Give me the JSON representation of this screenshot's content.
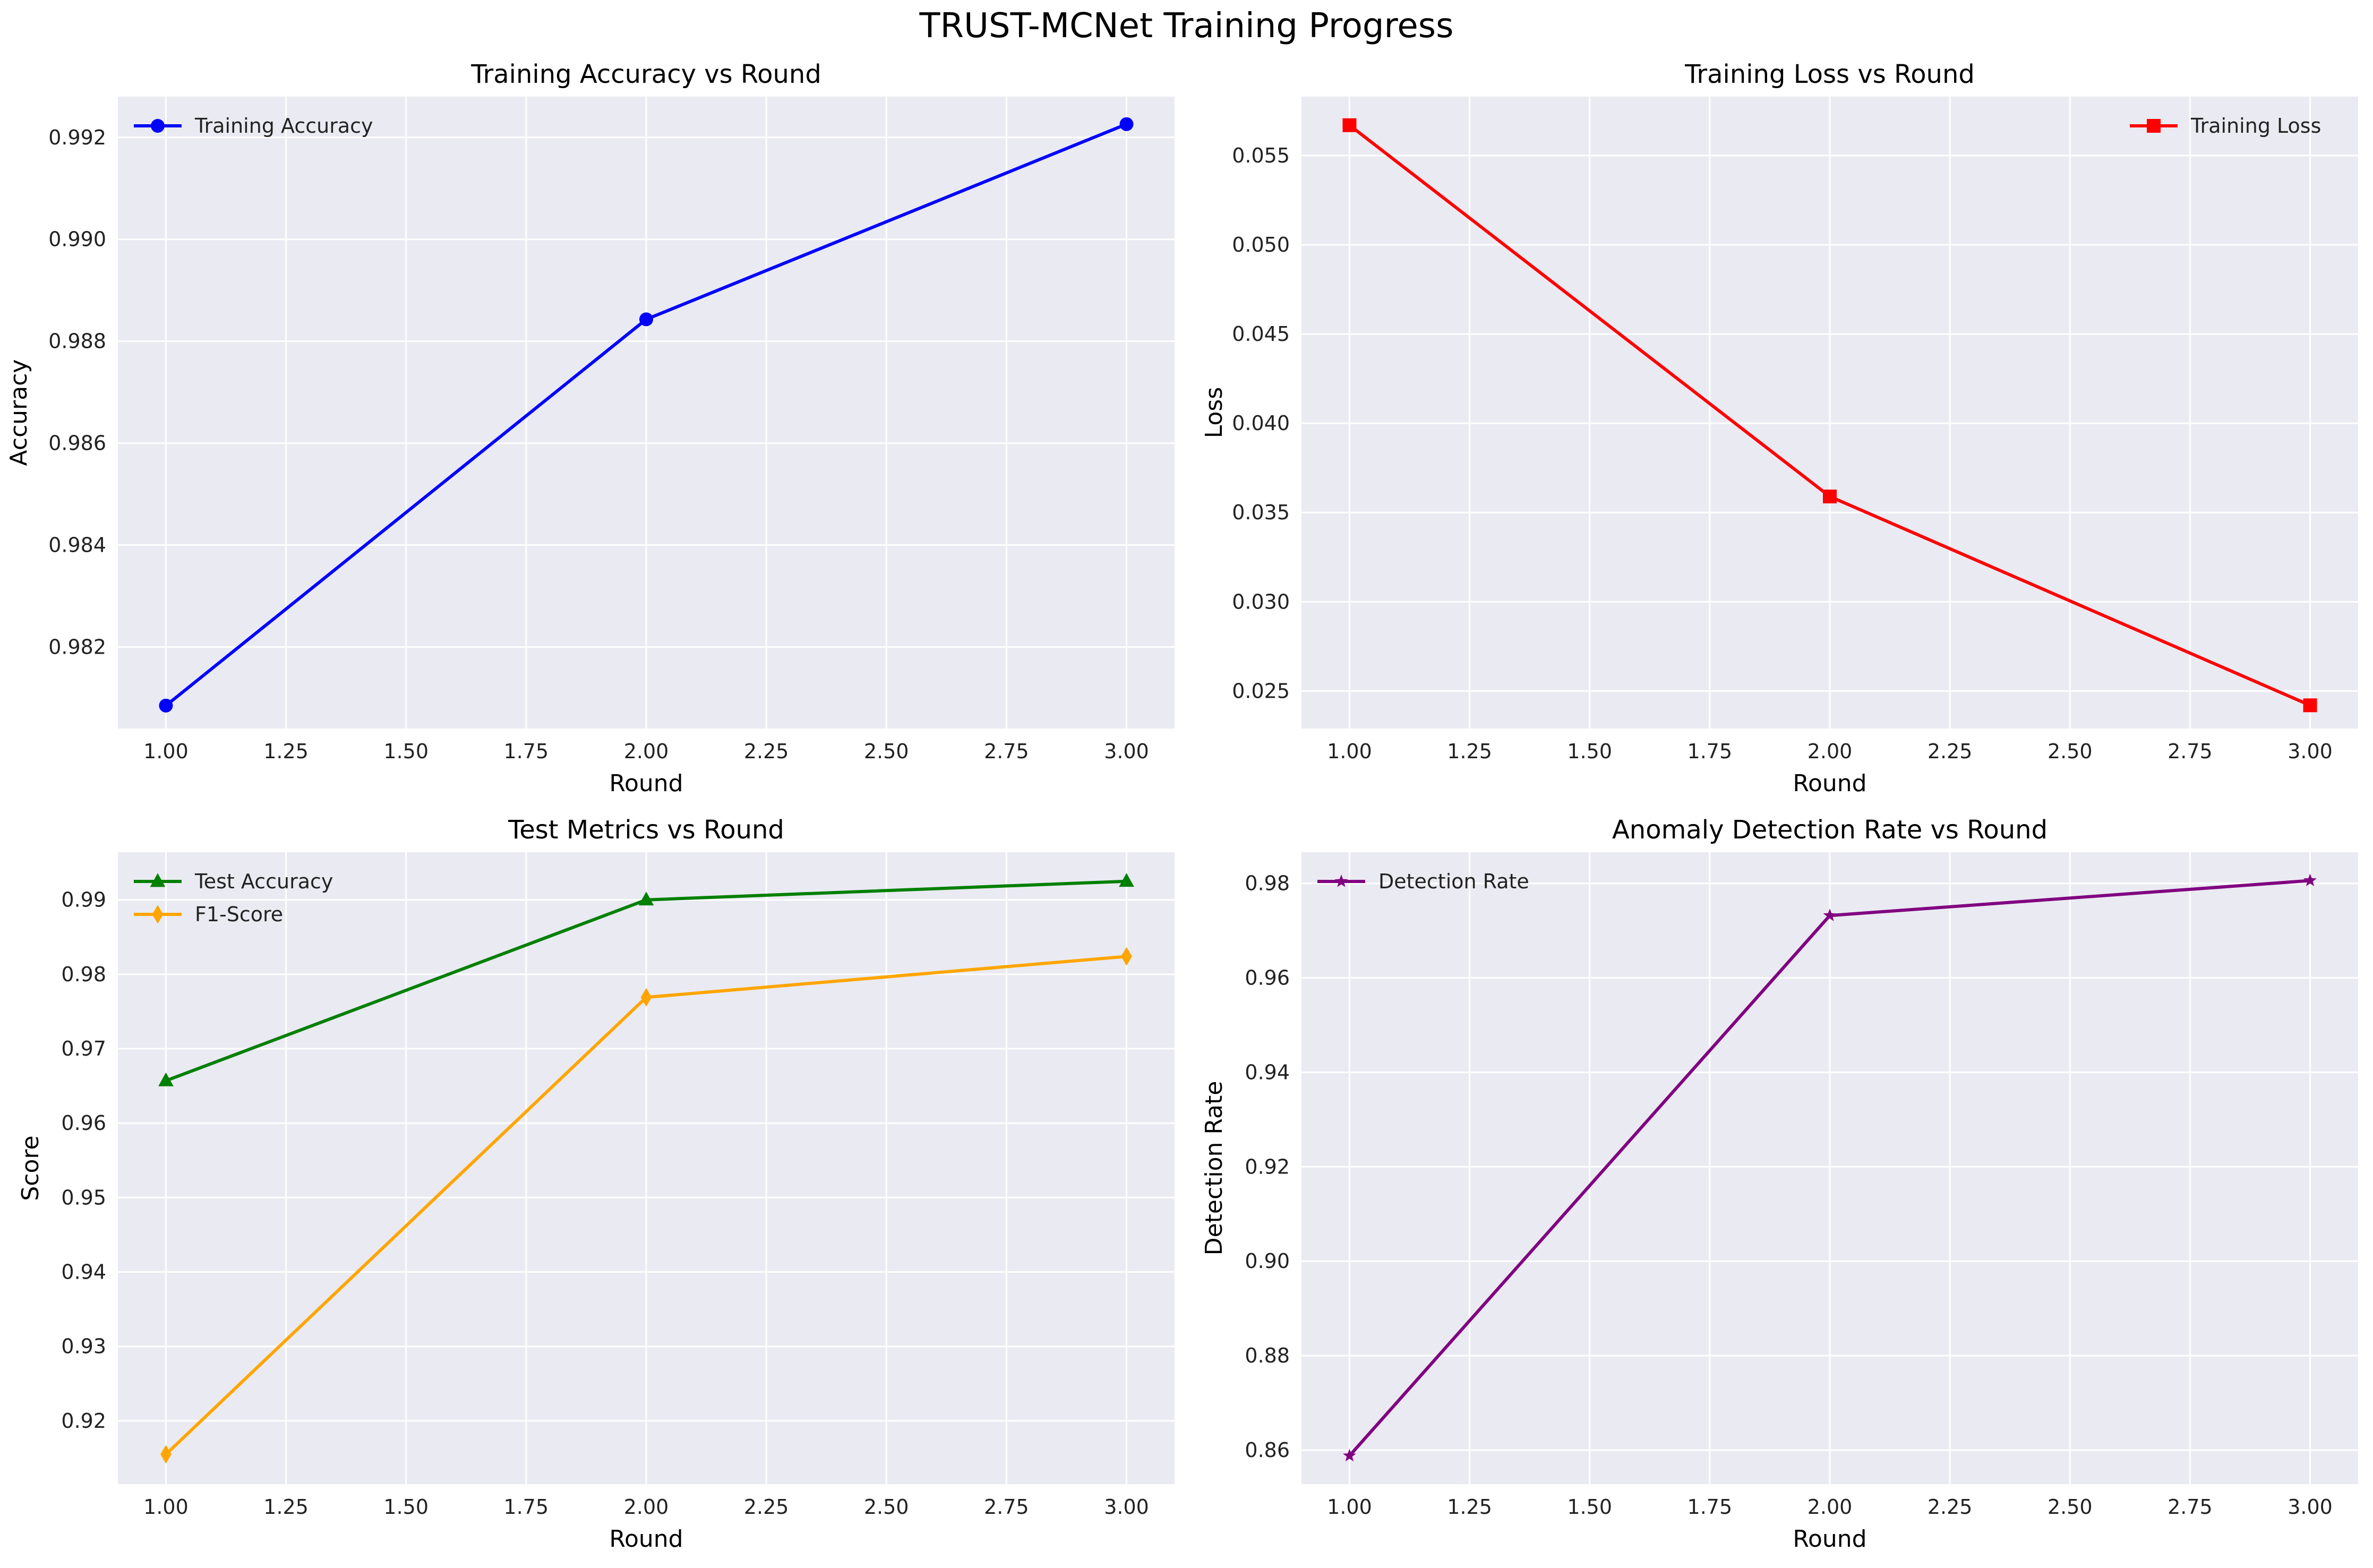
{
  "figure": {
    "suptitle": "TRUST-MCNet Training Progress"
  },
  "chart_data": [
    {
      "type": "line",
      "title": "Training Accuracy vs Round",
      "xlabel": "Round",
      "ylabel": "Accuracy",
      "xlim": [
        0.9,
        3.1
      ],
      "ylim": [
        0.9804,
        0.9928
      ],
      "xticks": [
        1.0,
        1.25,
        1.5,
        1.75,
        2.0,
        2.25,
        2.5,
        2.75,
        3.0
      ],
      "xtick_labels": [
        "1.00",
        "1.25",
        "1.50",
        "1.75",
        "2.00",
        "2.25",
        "2.50",
        "2.75",
        "3.00"
      ],
      "yticks": [
        0.982,
        0.984,
        0.986,
        0.988,
        0.99,
        0.992
      ],
      "ytick_labels": [
        "0.982",
        "0.984",
        "0.986",
        "0.988",
        "0.990",
        "0.992"
      ],
      "legend_position": "top-left",
      "grid": true,
      "series": [
        {
          "name": "Training Accuracy",
          "color": "#0000ff",
          "marker": "circle",
          "x": [
            1,
            2,
            3
          ],
          "y": [
            0.98085,
            0.98843,
            0.99226
          ]
        }
      ]
    },
    {
      "type": "line",
      "title": "Training Loss vs Round",
      "xlabel": "Round",
      "ylabel": "Loss",
      "xlim": [
        0.9,
        3.1
      ],
      "ylim": [
        0.0229,
        0.0583
      ],
      "xticks": [
        1.0,
        1.25,
        1.5,
        1.75,
        2.0,
        2.25,
        2.5,
        2.75,
        3.0
      ],
      "xtick_labels": [
        "1.00",
        "1.25",
        "1.50",
        "1.75",
        "2.00",
        "2.25",
        "2.50",
        "2.75",
        "3.00"
      ],
      "yticks": [
        0.025,
        0.03,
        0.035,
        0.04,
        0.045,
        0.05,
        0.055
      ],
      "ytick_labels": [
        "0.025",
        "0.030",
        "0.035",
        "0.040",
        "0.045",
        "0.050",
        "0.055"
      ],
      "legend_position": "top-right",
      "grid": true,
      "series": [
        {
          "name": "Training Loss",
          "color": "#ff0000",
          "marker": "square",
          "x": [
            1,
            2,
            3
          ],
          "y": [
            0.0567,
            0.0359,
            0.0242
          ]
        }
      ]
    },
    {
      "type": "line",
      "title": "Test Metrics vs Round",
      "xlabel": "Round",
      "ylabel": "Score",
      "xlim": [
        0.9,
        3.1
      ],
      "ylim": [
        0.9115,
        0.9964
      ],
      "xticks": [
        1.0,
        1.25,
        1.5,
        1.75,
        2.0,
        2.25,
        2.5,
        2.75,
        3.0
      ],
      "xtick_labels": [
        "1.00",
        "1.25",
        "1.50",
        "1.75",
        "2.00",
        "2.25",
        "2.50",
        "2.75",
        "3.00"
      ],
      "yticks": [
        0.92,
        0.93,
        0.94,
        0.95,
        0.96,
        0.97,
        0.98,
        0.99
      ],
      "ytick_labels": [
        "0.92",
        "0.93",
        "0.94",
        "0.95",
        "0.96",
        "0.97",
        "0.98",
        "0.99"
      ],
      "legend_position": "top-left",
      "grid": true,
      "series": [
        {
          "name": "Test Accuracy",
          "color": "#008000",
          "marker": "triangle",
          "x": [
            1,
            2,
            3
          ],
          "y": [
            0.9657,
            0.99,
            0.9925
          ]
        },
        {
          "name": "F1-Score",
          "color": "#ffa500",
          "marker": "diamond",
          "x": [
            1,
            2,
            3
          ],
          "y": [
            0.9155,
            0.9769,
            0.9824
          ]
        }
      ]
    },
    {
      "type": "line",
      "title": "Anomaly Detection Rate vs Round",
      "xlabel": "Round",
      "ylabel": "Detection Rate",
      "xlim": [
        0.9,
        3.1
      ],
      "ylim": [
        0.8528,
        0.9866
      ],
      "xticks": [
        1.0,
        1.25,
        1.5,
        1.75,
        2.0,
        2.25,
        2.5,
        2.75,
        3.0
      ],
      "xtick_labels": [
        "1.00",
        "1.25",
        "1.50",
        "1.75",
        "2.00",
        "2.25",
        "2.50",
        "2.75",
        "3.00"
      ],
      "yticks": [
        0.86,
        0.88,
        0.9,
        0.92,
        0.94,
        0.96,
        0.98
      ],
      "ytick_labels": [
        "0.86",
        "0.88",
        "0.90",
        "0.92",
        "0.94",
        "0.96",
        "0.98"
      ],
      "legend_position": "top-left",
      "grid": true,
      "series": [
        {
          "name": "Detection Rate",
          "color": "#800080",
          "marker": "star",
          "x": [
            1,
            2,
            3
          ],
          "y": [
            0.8588,
            0.9732,
            0.9806
          ]
        }
      ]
    }
  ]
}
